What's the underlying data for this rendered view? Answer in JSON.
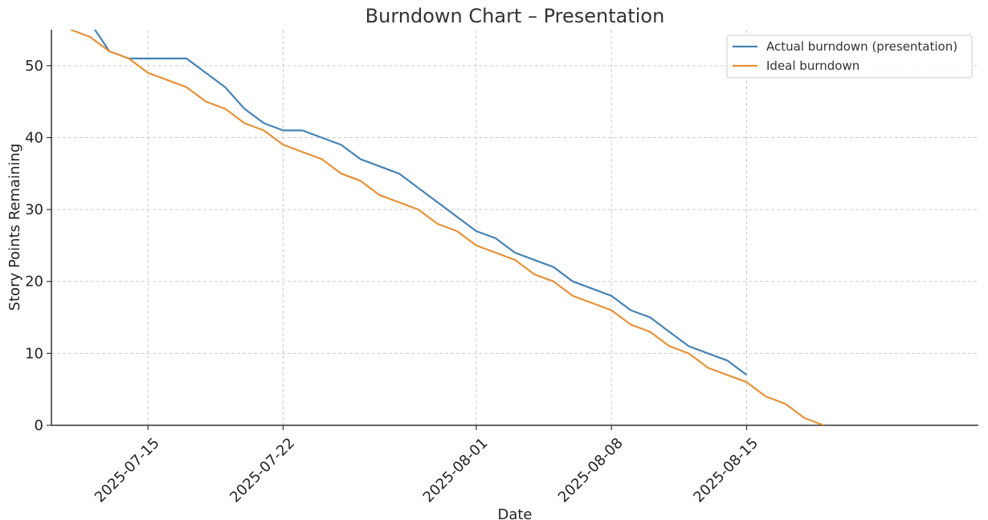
{
  "chart_data": {
    "type": "line",
    "title": "Burndown Chart – Presentation",
    "xlabel": "Date",
    "ylabel": "Story Points Remaining",
    "x_axis_type": "date",
    "xlim": [
      "2025-07-10",
      "2025-08-27"
    ],
    "ylim": [
      0,
      55
    ],
    "xticks": [
      "2025-07-15",
      "2025-07-22",
      "2025-08-01",
      "2025-08-08",
      "2025-08-15"
    ],
    "yticks": [
      0,
      10,
      20,
      30,
      40,
      50
    ],
    "grid": true,
    "legend_position": "top-right",
    "series": [
      {
        "name": "Actual burndown (presentation)",
        "color": "#4682b4",
        "points": [
          [
            "2025-07-12",
            56
          ],
          [
            "2025-07-13",
            52
          ],
          [
            "2025-07-14",
            51
          ],
          [
            "2025-07-15",
            51
          ],
          [
            "2025-07-16",
            51
          ],
          [
            "2025-07-17",
            51
          ],
          [
            "2025-07-18",
            49
          ],
          [
            "2025-07-19",
            47
          ],
          [
            "2025-07-20",
            44
          ],
          [
            "2025-07-21",
            42
          ],
          [
            "2025-07-22",
            41
          ],
          [
            "2025-07-23",
            41
          ],
          [
            "2025-07-24",
            40
          ],
          [
            "2025-07-25",
            39
          ],
          [
            "2025-07-26",
            37
          ],
          [
            "2025-07-27",
            36
          ],
          [
            "2025-07-28",
            35
          ],
          [
            "2025-07-29",
            33
          ],
          [
            "2025-07-30",
            31
          ],
          [
            "2025-07-31",
            29
          ],
          [
            "2025-08-01",
            27
          ],
          [
            "2025-08-02",
            26
          ],
          [
            "2025-08-03",
            24
          ],
          [
            "2025-08-04",
            23
          ],
          [
            "2025-08-05",
            22
          ],
          [
            "2025-08-06",
            20
          ],
          [
            "2025-08-07",
            19
          ],
          [
            "2025-08-08",
            18
          ],
          [
            "2025-08-09",
            16
          ],
          [
            "2025-08-10",
            15
          ],
          [
            "2025-08-11",
            13
          ],
          [
            "2025-08-12",
            11
          ],
          [
            "2025-08-13",
            10
          ],
          [
            "2025-08-14",
            9
          ],
          [
            "2025-08-15",
            7
          ]
        ]
      },
      {
        "name": "Ideal burndown",
        "color": "#e69138",
        "points": [
          [
            "2025-07-11",
            55
          ],
          [
            "2025-07-12",
            54
          ],
          [
            "2025-07-13",
            52
          ],
          [
            "2025-07-14",
            51
          ],
          [
            "2025-07-15",
            49
          ],
          [
            "2025-07-16",
            48
          ],
          [
            "2025-07-17",
            47
          ],
          [
            "2025-07-18",
            45
          ],
          [
            "2025-07-19",
            44
          ],
          [
            "2025-07-20",
            42
          ],
          [
            "2025-07-21",
            41
          ],
          [
            "2025-07-22",
            39
          ],
          [
            "2025-07-23",
            38
          ],
          [
            "2025-07-24",
            37
          ],
          [
            "2025-07-25",
            35
          ],
          [
            "2025-07-26",
            34
          ],
          [
            "2025-07-27",
            32
          ],
          [
            "2025-07-28",
            31
          ],
          [
            "2025-07-29",
            30
          ],
          [
            "2025-07-30",
            28
          ],
          [
            "2025-07-31",
            27
          ],
          [
            "2025-08-01",
            25
          ],
          [
            "2025-08-02",
            24
          ],
          [
            "2025-08-03",
            23
          ],
          [
            "2025-08-04",
            21
          ],
          [
            "2025-08-05",
            20
          ],
          [
            "2025-08-06",
            18
          ],
          [
            "2025-08-07",
            17
          ],
          [
            "2025-08-08",
            16
          ],
          [
            "2025-08-09",
            14
          ],
          [
            "2025-08-10",
            13
          ],
          [
            "2025-08-11",
            11
          ],
          [
            "2025-08-12",
            10
          ],
          [
            "2025-08-13",
            8
          ],
          [
            "2025-08-14",
            7
          ],
          [
            "2025-08-15",
            6
          ],
          [
            "2025-08-16",
            4
          ],
          [
            "2025-08-17",
            3
          ],
          [
            "2025-08-18",
            1
          ],
          [
            "2025-08-19",
            0
          ]
        ]
      }
    ]
  }
}
